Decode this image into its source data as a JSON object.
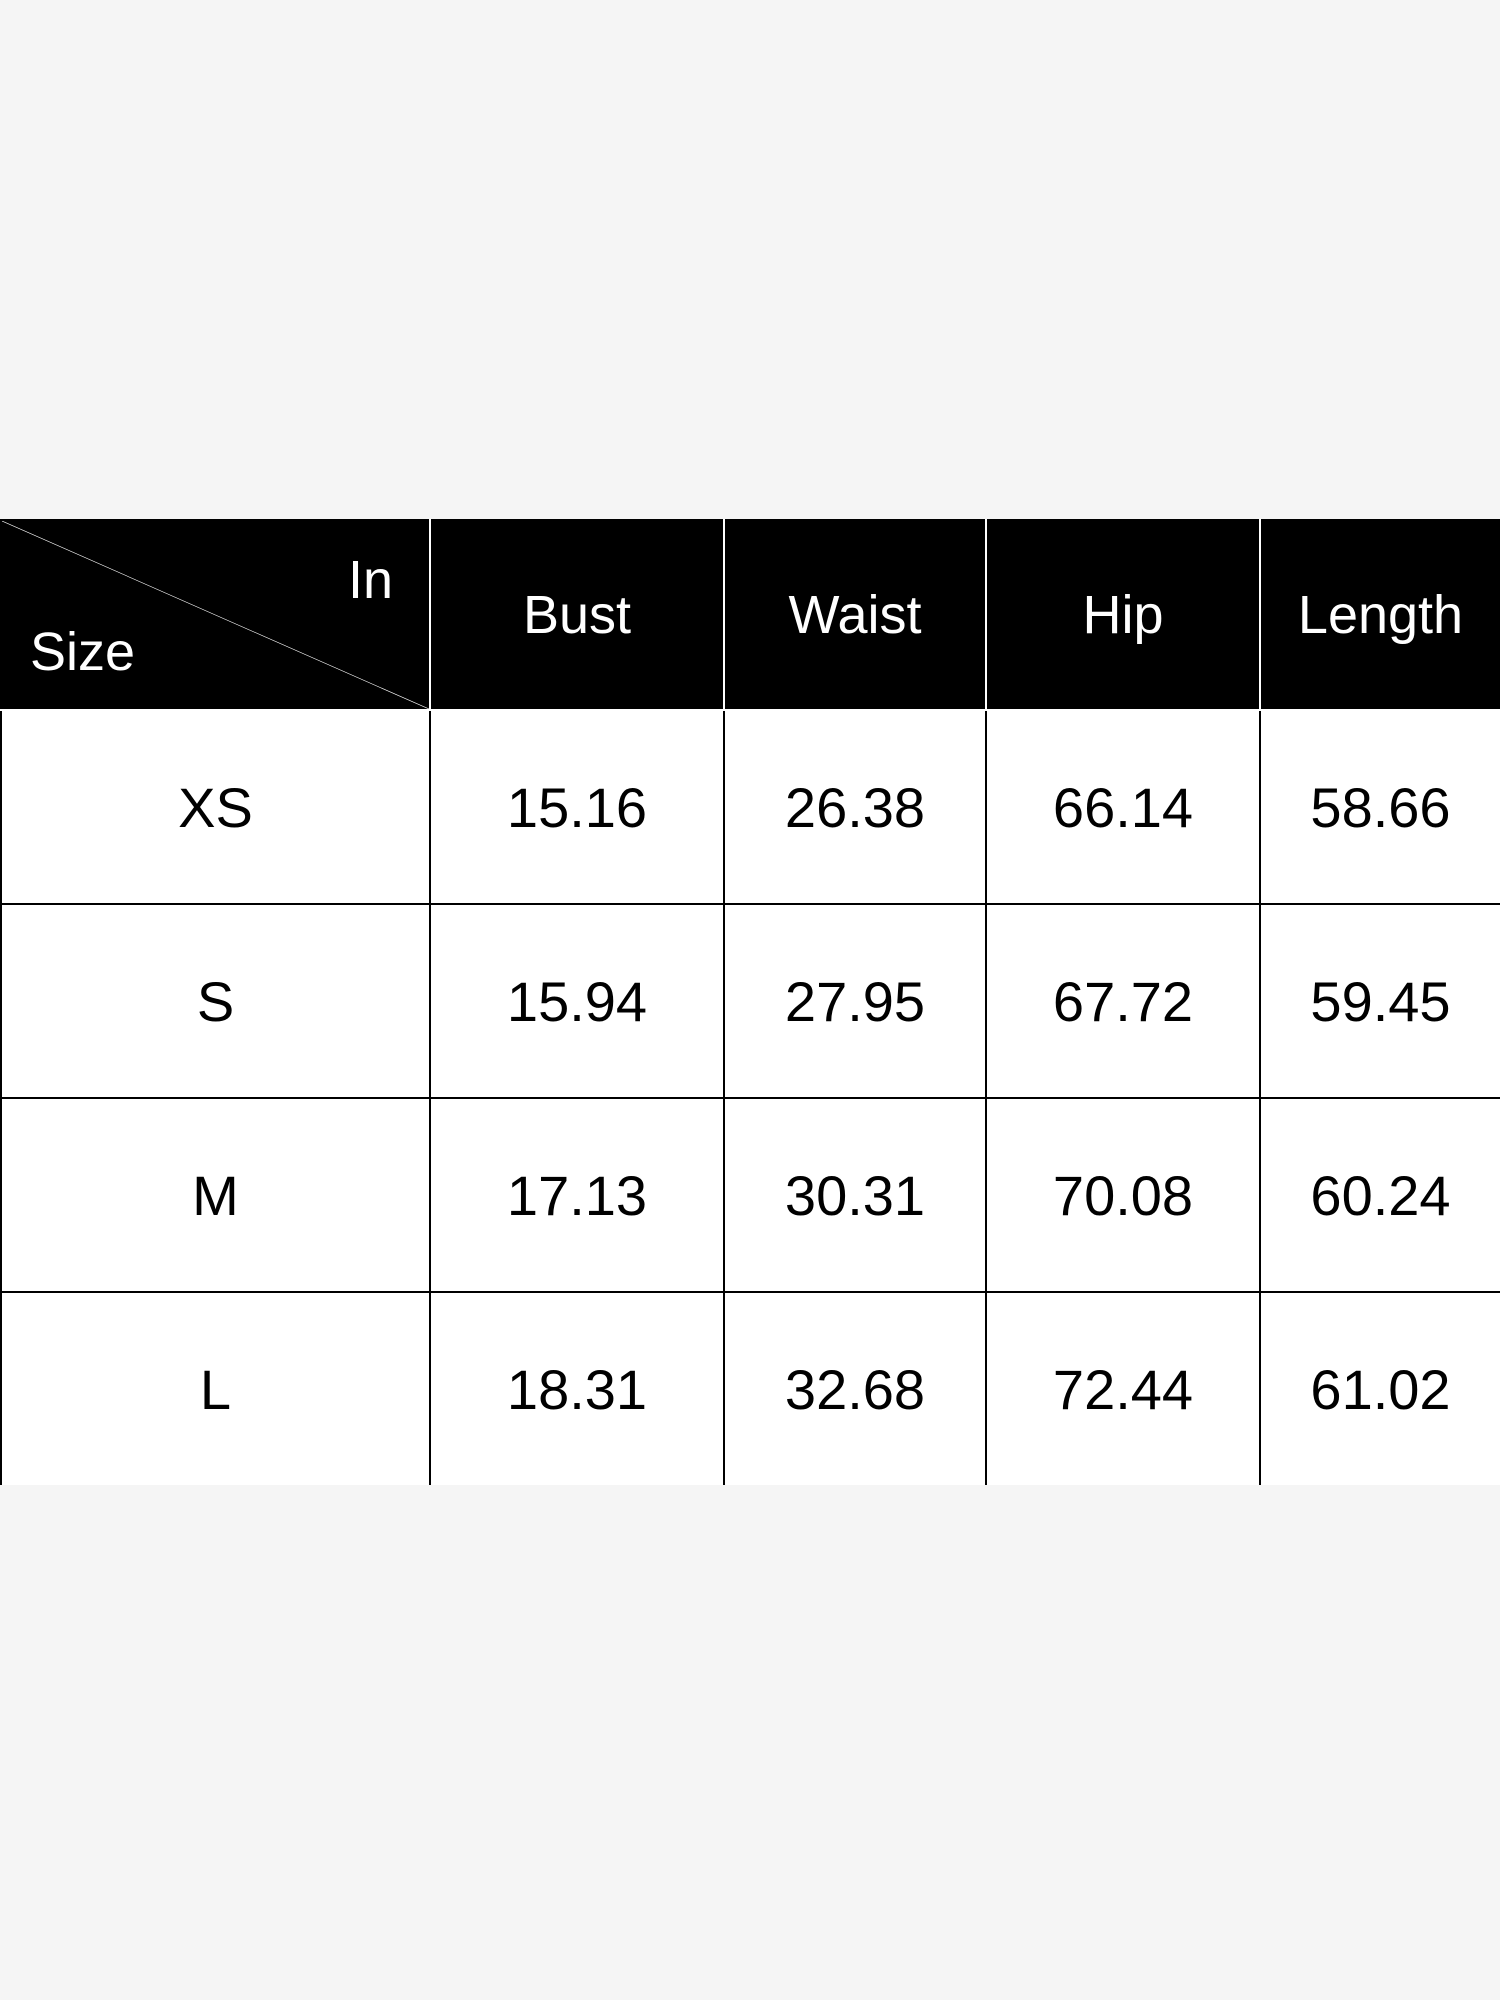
{
  "table": {
    "corner": {
      "top_right": "In",
      "bottom_left": "Size"
    },
    "headers": [
      "Bust",
      "Waist",
      "Hip",
      "Length"
    ],
    "rows": [
      {
        "size": "XS",
        "values": [
          "15.16",
          "26.38",
          "66.14",
          "58.66"
        ]
      },
      {
        "size": "S",
        "values": [
          "15.94",
          "27.95",
          "67.72",
          "59.45"
        ]
      },
      {
        "size": "M",
        "values": [
          "17.13",
          "30.31",
          "70.08",
          "60.24"
        ]
      },
      {
        "size": "L",
        "values": [
          "18.31",
          "32.68",
          "72.44",
          "61.02"
        ]
      }
    ]
  },
  "colors": {
    "header_bg": "#000000",
    "header_text": "#ffffff",
    "cell_bg": "#ffffff",
    "page_bg": "#f5f5f5"
  }
}
